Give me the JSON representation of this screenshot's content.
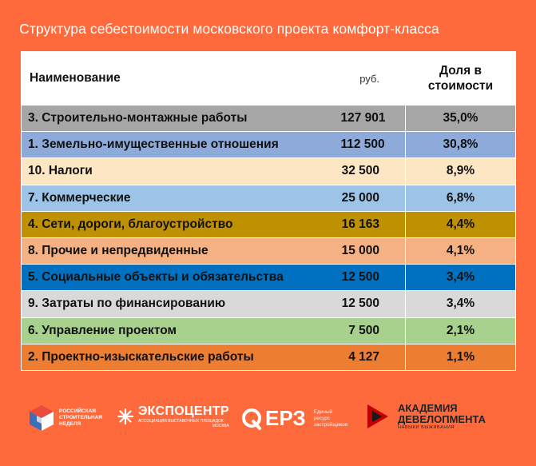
{
  "title": "Структура себестоимости московского проекта комфорт-класса",
  "table": {
    "headers": {
      "name": "Наименование",
      "rub": "руб.",
      "share_line1": "Доля в",
      "share_line2": "стоимости"
    },
    "rows": [
      {
        "name": "3. Строительно-монтажные работы",
        "value": "127 901",
        "share": "35,0%",
        "color": "#a6a6a6"
      },
      {
        "name": "1. Земельно-имущественные отношения",
        "value": "112 500",
        "share": "30,8%",
        "color": "#8eaadb"
      },
      {
        "name": "10. Налоги",
        "value": "32 500",
        "share": "8,9%",
        "color": "#fde6c4"
      },
      {
        "name": "7. Коммерческие",
        "value": "25 000",
        "share": "6,8%",
        "color": "#9dc3e6"
      },
      {
        "name": "4. Сети, дороги, благоустройство",
        "value": "16 163",
        "share": "4,4%",
        "color": "#bf9000"
      },
      {
        "name": "8. Прочие и непредвиденные",
        "value": "15 000",
        "share": "4,1%",
        "color": "#f4b183"
      },
      {
        "name": "5. Социальные объекты и обязательства",
        "value": "12 500",
        "share": "3,4%",
        "color": "#0070c0"
      },
      {
        "name": "9. Затраты по финансированию",
        "value": "12 500",
        "share": "3,4%",
        "color": "#d9d9d9"
      },
      {
        "name": "6. Управление проектом",
        "value": "7 500",
        "share": "2,1%",
        "color": "#a9d18e"
      },
      {
        "name": "2. Проектно-изыскательские работы",
        "value": "4 127",
        "share": "1,1%",
        "color": "#ed7d31"
      }
    ]
  },
  "logos": {
    "rsn": {
      "line1": "Российская",
      "line2": "строительная",
      "line3": "неделя"
    },
    "expocentre": {
      "name": "ЭКСПОЦЕНТР",
      "tagline": "АССОЦИАЦИЯ ВЫСТАВОЧНЫХ ПЛОЩАДОК",
      "city": "МОСКВА"
    },
    "erz": {
      "name": "ЕРЗ",
      "line1": "Единый",
      "line2": "ресурс",
      "line3": "застройщиков"
    },
    "academy": {
      "line1": "АКАДЕМИЯ",
      "line2": "ДЕВЕЛОПМЕНТА",
      "tagline": "НАВЫКИ ВЫЖИВАНИЯ"
    }
  }
}
